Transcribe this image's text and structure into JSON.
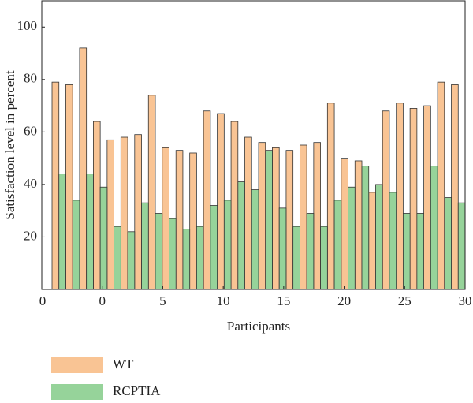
{
  "chart_data": {
    "type": "bar",
    "xlabel": "Participants",
    "ylabel": "Satisfaction level in percent",
    "categories": [
      null,
      null,
      null,
      null,
      null,
      null,
      null,
      null,
      null,
      null,
      null,
      null,
      null,
      null,
      null,
      null,
      null,
      null,
      null,
      null,
      null,
      null,
      null,
      null,
      null,
      null,
      null,
      null,
      null,
      null
    ],
    "series": [
      {
        "name": "WT",
        "color": "#f9c494",
        "values": [
          79,
          78,
          92,
          64,
          57,
          58,
          59,
          74,
          54,
          53,
          52,
          68,
          67,
          64,
          58,
          56,
          54,
          53,
          55,
          56,
          71,
          50,
          49,
          37,
          68,
          71,
          69,
          70,
          79,
          78
        ]
      },
      {
        "name": "RCPTIA",
        "color": "#96d39a",
        "values": [
          44,
          34,
          44,
          39,
          24,
          22,
          33,
          29,
          27,
          23,
          24,
          32,
          34,
          41,
          38,
          53,
          31,
          24,
          29,
          24,
          34,
          39,
          47,
          40,
          37,
          29,
          29,
          47,
          35,
          33
        ]
      }
    ],
    "xlim": [
      -5,
      30
    ],
    "xticks": [
      0,
      5,
      10,
      15,
      20,
      25,
      30
    ],
    "ylim": [
      0,
      110
    ],
    "yticks": [
      0,
      20,
      40,
      60,
      80,
      100
    ],
    "legend": "bottom-left"
  }
}
